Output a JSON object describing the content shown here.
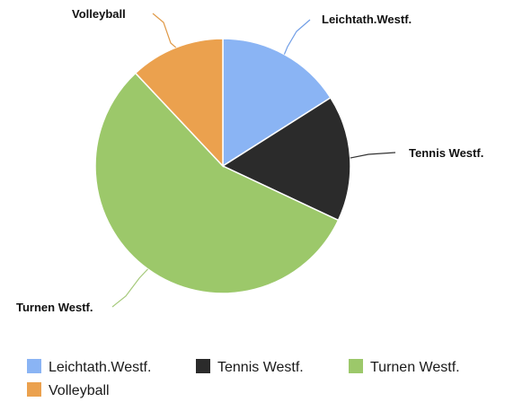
{
  "chart_data": {
    "type": "pie",
    "title": "",
    "categories": [
      "Leichtath.Westf.",
      "Tennis Westf.",
      "Turnen Westf.",
      "Volleyball"
    ],
    "values": [
      16,
      16,
      56,
      12
    ],
    "colors": [
      "#8ab4f4",
      "#2b2b2b",
      "#9cc86a",
      "#eba14e"
    ],
    "leader_colors": [
      "#6f9de6",
      "#333333",
      "#a5c97a",
      "#e09a48"
    ],
    "legend": {
      "placement": "bottom",
      "entries": [
        "Leichtath.Westf.",
        "Tennis Westf.",
        "Turnen Westf.",
        "Volleyball"
      ]
    }
  }
}
